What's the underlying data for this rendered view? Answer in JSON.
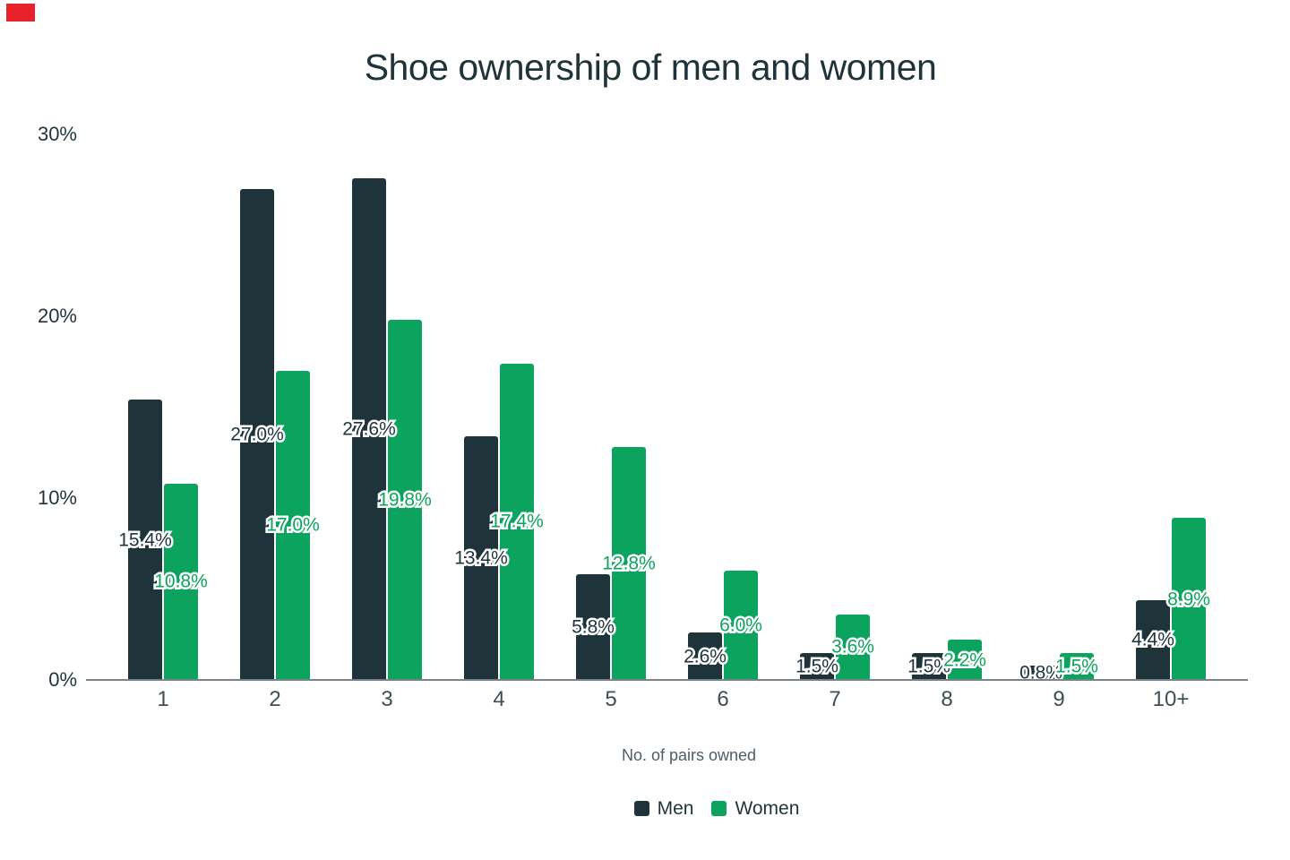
{
  "corner_marker": {
    "color": "#e8212b"
  },
  "chart_data": {
    "type": "bar",
    "title": "Shoe ownership of men and women",
    "xlabel": "No. of pairs owned",
    "ylabel": "",
    "categories": [
      "1",
      "2",
      "3",
      "4",
      "5",
      "6",
      "7",
      "8",
      "9",
      "10+"
    ],
    "series": [
      {
        "name": "Men",
        "color": "#1f343a",
        "values": [
          15.4,
          27.0,
          27.6,
          13.4,
          5.8,
          2.6,
          1.5,
          1.5,
          0.8,
          4.4
        ]
      },
      {
        "name": "Women",
        "color": "#0ca35e",
        "values": [
          10.8,
          17.0,
          19.8,
          17.4,
          12.8,
          6.0,
          3.6,
          2.2,
          1.5,
          8.9
        ]
      }
    ],
    "value_label_format": "0.0%",
    "ylim": [
      0,
      30
    ],
    "yticks": [
      {
        "pct": 0,
        "label": "0%"
      },
      {
        "pct": 10,
        "label": "10%"
      },
      {
        "pct": 20,
        "label": "20%"
      },
      {
        "pct": 30,
        "label": "30%"
      }
    ],
    "grid": false,
    "legend_position": "bottom"
  }
}
